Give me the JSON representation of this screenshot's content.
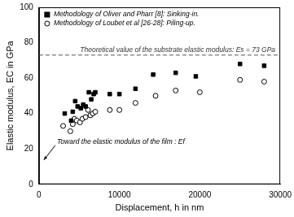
{
  "chart_data": {
    "type": "scatter",
    "x_label": "Displacement, h in nm",
    "y_label": "Elastic modulus, EC in GPa",
    "xlim": [
      0,
      30000
    ],
    "xticks": [
      0,
      10000,
      20000,
      30000
    ],
    "ylim": [
      0,
      100
    ],
    "yticks": [
      0,
      20,
      40,
      60,
      80,
      100
    ],
    "grid": false,
    "legend": "upper left",
    "series": [
      {
        "name": "Methodology of Oliver and Pharr [8]: Sinking-in.",
        "color": "#000000",
        "marker": "square",
        "x": [
          3200,
          4000,
          4200,
          4500,
          4800,
          5200,
          5500,
          5800,
          6200,
          6500,
          6800,
          7000,
          8800,
          10000,
          12000,
          14200,
          17000,
          19500,
          25000,
          28000
        ],
        "values": [
          40,
          36,
          41,
          47,
          44,
          43,
          45,
          44,
          52,
          48,
          51,
          52,
          51,
          51,
          54,
          62,
          63,
          61,
          68,
          67
        ]
      },
      {
        "name": "Methodology of Loubet et al [26-28]: Piling-up.",
        "color": "#000000",
        "marker": "open_circle",
        "x": [
          3000,
          3900,
          4200,
          4400,
          4700,
          5100,
          5400,
          5800,
          6100,
          6400,
          6700,
          7000,
          8800,
          10000,
          12000,
          14500,
          17000,
          20000,
          25000,
          28000
        ],
        "values": [
          33,
          30,
          34,
          37,
          36,
          35,
          37,
          38,
          42,
          39,
          40,
          41,
          42,
          42,
          46,
          50,
          53,
          52,
          59,
          58
        ]
      }
    ],
    "reference_line": {
      "value": 73,
      "label": "Theoretical value of the substrate elastic modulus: Es = 73 GPa",
      "line_style": "dashed",
      "color": "#555555"
    },
    "annotations": [
      {
        "text": "Toward the elastic modulus of the film : Ef"
      }
    ]
  }
}
